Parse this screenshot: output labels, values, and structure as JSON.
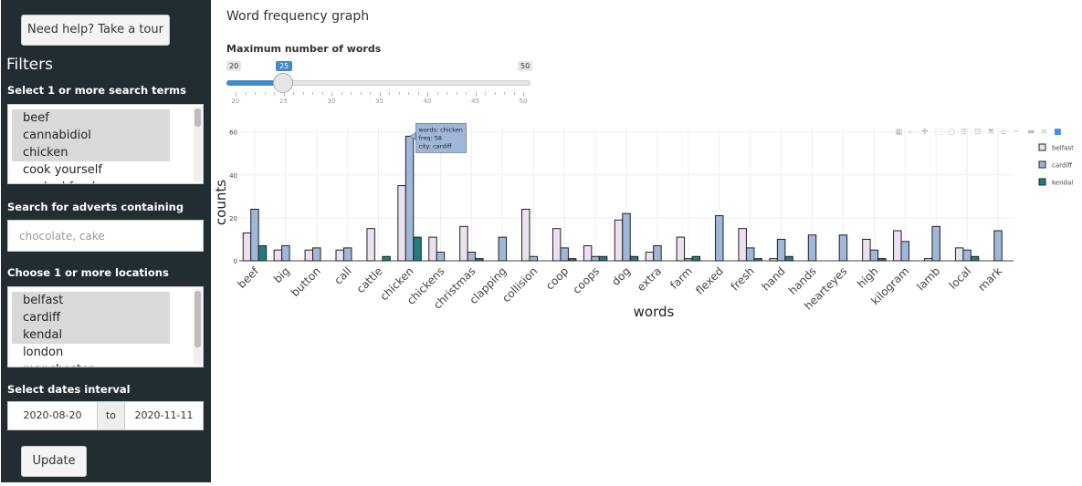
{
  "sidebar": {
    "tour_button": "Need help? Take a tour",
    "filters_title": "Filters",
    "search_terms": {
      "label": "Select 1 or more search terms",
      "options": [
        {
          "label": "beef",
          "selected": true
        },
        {
          "label": "cannabidiol",
          "selected": true
        },
        {
          "label": "chicken",
          "selected": true
        },
        {
          "label": "cook yourself",
          "selected": false
        },
        {
          "label": "cooked food",
          "selected": false
        }
      ]
    },
    "advert_search": {
      "label": "Search for adverts containing",
      "placeholder": "chocolate, cake",
      "value": ""
    },
    "locations": {
      "label": "Choose 1 or more locations",
      "options": [
        {
          "label": "belfast",
          "selected": true
        },
        {
          "label": "cardiff",
          "selected": true
        },
        {
          "label": "kendal",
          "selected": true
        },
        {
          "label": "london",
          "selected": false
        },
        {
          "label": "manchester",
          "selected": false
        }
      ]
    },
    "dates": {
      "label": "Select dates interval",
      "start": "2020-08-20",
      "separator": "to",
      "end": "2020-11-11"
    },
    "update_button": "Update"
  },
  "main": {
    "title": "Word frequency graph",
    "slider": {
      "label": "Maximum number of words",
      "min": 20,
      "max": 50,
      "value": 25,
      "tick_labels": [
        "20",
        "25",
        "30",
        "35",
        "40",
        "45",
        "50"
      ]
    }
  },
  "chart_data": {
    "type": "bar",
    "xlabel": "words",
    "ylabel": "counts",
    "ylim": [
      0,
      62
    ],
    "yticks": [
      0,
      20,
      40,
      60
    ],
    "grid": true,
    "legend_position": "right",
    "categories": [
      "beef",
      "big",
      "button",
      "call",
      "cattle",
      "chicken",
      "chickens",
      "christmas",
      "clapping",
      "collision",
      "coop",
      "coops",
      "dog",
      "extra",
      "farm",
      "flexed",
      "fresh",
      "hand",
      "hands",
      "hearteyes",
      "high",
      "kilogram",
      "lamb",
      "local",
      "mark"
    ],
    "series": [
      {
        "name": "belfast",
        "color": "#eae0ee",
        "values": [
          13,
          5,
          5,
          5,
          15,
          35,
          11,
          16,
          0,
          24,
          15,
          7,
          19,
          4,
          11,
          0,
          15,
          1,
          0,
          0,
          10,
          14,
          1,
          6,
          0
        ]
      },
      {
        "name": "cardiff",
        "color": "#9fb7d9",
        "values": [
          24,
          7,
          6,
          6,
          0,
          58,
          4,
          4,
          11,
          2,
          6,
          2,
          22,
          7,
          1,
          21,
          6,
          10,
          12,
          12,
          5,
          9,
          16,
          5,
          14
        ]
      },
      {
        "name": "kendal",
        "color": "#217c7e",
        "values": [
          7,
          0,
          0,
          0,
          2,
          11,
          0,
          1,
          0,
          0,
          1,
          2,
          2,
          0,
          2,
          0,
          1,
          2,
          0,
          0,
          1,
          0,
          0,
          2,
          0
        ]
      }
    ],
    "tooltip": {
      "lines": [
        "words: chicken",
        "freq: 58",
        "city: cardiff"
      ]
    }
  },
  "modebar_icons": [
    "camera-icon",
    "zoom-icon",
    "pan-icon",
    "box-select-icon",
    "lasso-icon",
    "zoom-in-icon",
    "zoom-out-icon",
    "autoscale-icon",
    "reset-axes-icon",
    "spike-lines-icon",
    "hover-closest-icon",
    "hover-compare-icon",
    "plotly-logo-icon"
  ]
}
